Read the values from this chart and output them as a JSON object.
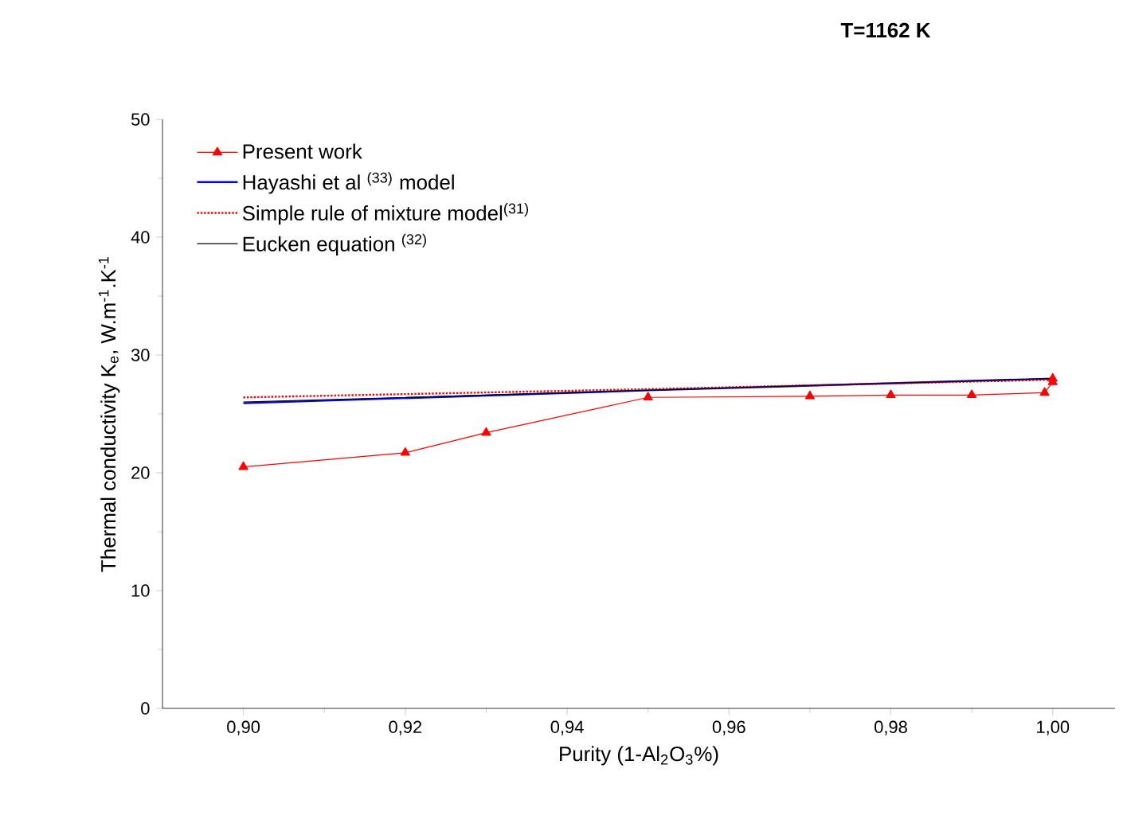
{
  "chart_data": {
    "type": "line",
    "title": "T=1162 K",
    "xlabel": "Purity (1-Al$_{2}$O$_{3}$%)",
    "ylabel": "Thermal conductivity K$_{e}$, W.m$^{-1}$.K$^{-1}$",
    "series": [
      {
        "name": "Present work",
        "color": "#ff0000",
        "marker": "triangle",
        "line_style": "solid",
        "x": [
          0.9,
          0.92,
          0.93,
          0.95,
          0.97,
          0.98,
          0.99,
          0.999,
          1.0,
          1.0
        ],
        "values": [
          20.5,
          21.7,
          23.4,
          26.4,
          26.5,
          26.6,
          26.6,
          26.8,
          27.7,
          28.0
        ]
      },
      {
        "name": "Hayashi et al $^{(33)}$ model",
        "color": "#0000ff",
        "marker": "none",
        "line_style": "solid",
        "x": [
          0.9,
          0.95,
          1.0
        ],
        "values": [
          25.9,
          27.0,
          28.0
        ]
      },
      {
        "name": "Simple rule of mixture model$^{(31)}$",
        "color": "#ff0000",
        "marker": "none",
        "line_style": "dotted",
        "x": [
          0.9,
          0.95,
          1.0
        ],
        "values": [
          26.4,
          27.1,
          27.9
        ]
      },
      {
        "name": "Eucken equation $^{(32)}$",
        "color": "#000000",
        "marker": "none",
        "line_style": "solid",
        "x": [
          0.9,
          0.95,
          1.0
        ],
        "values": [
          26.0,
          27.0,
          28.0
        ]
      }
    ],
    "xlim": [
      0.89,
      1.0077
    ],
    "ylim": [
      0,
      50
    ],
    "xticks": [
      {
        "value": 0.9,
        "label": "0,90"
      },
      {
        "value": 0.92,
        "label": "0,92"
      },
      {
        "value": 0.94,
        "label": "0,94"
      },
      {
        "value": 0.96,
        "label": "0,96"
      },
      {
        "value": 0.98,
        "label": "0,98"
      },
      {
        "value": 1.0,
        "label": "1,00"
      }
    ],
    "yticks": [
      0,
      10,
      20,
      30,
      40,
      50
    ],
    "legend": "top left",
    "grid": false
  }
}
